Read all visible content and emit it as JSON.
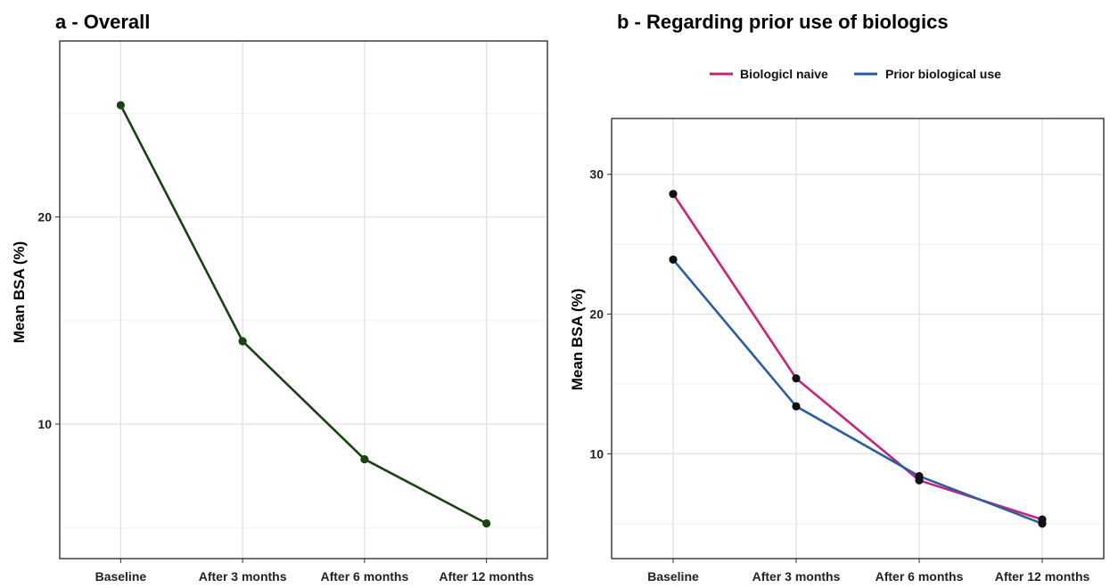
{
  "chart_data": [
    {
      "type": "line",
      "title": "a - Overall",
      "xlabel": "",
      "ylabel": "Mean BSA (%)",
      "categories": [
        "Baseline",
        "After 3 months",
        "After 6 months",
        "After 12 months"
      ],
      "series": [
        {
          "values": [
            25.4,
            14.0,
            8.3,
            5.2
          ],
          "color": "#1a4314"
        }
      ],
      "ylim": [
        3.5,
        28.5
      ],
      "yticks": [
        10,
        20
      ],
      "grid": true,
      "legend": null
    },
    {
      "type": "line",
      "title": "b - Regarding prior use of biologics",
      "xlabel": "",
      "ylabel": "Mean BSA (%)",
      "categories": [
        "Baseline",
        "After 3 months",
        "After 6 months",
        "After 12 months"
      ],
      "series": [
        {
          "name": "Biologicl naive",
          "values": [
            28.6,
            15.4,
            8.1,
            5.3
          ],
          "color": "#c7237d"
        },
        {
          "name": "Prior biological use",
          "values": [
            23.9,
            13.4,
            8.4,
            5.0
          ],
          "color": "#2a5ea0"
        }
      ],
      "ylim": [
        2.5,
        34
      ],
      "yticks": [
        10,
        20,
        30
      ],
      "grid": true,
      "legend": "top"
    }
  ]
}
